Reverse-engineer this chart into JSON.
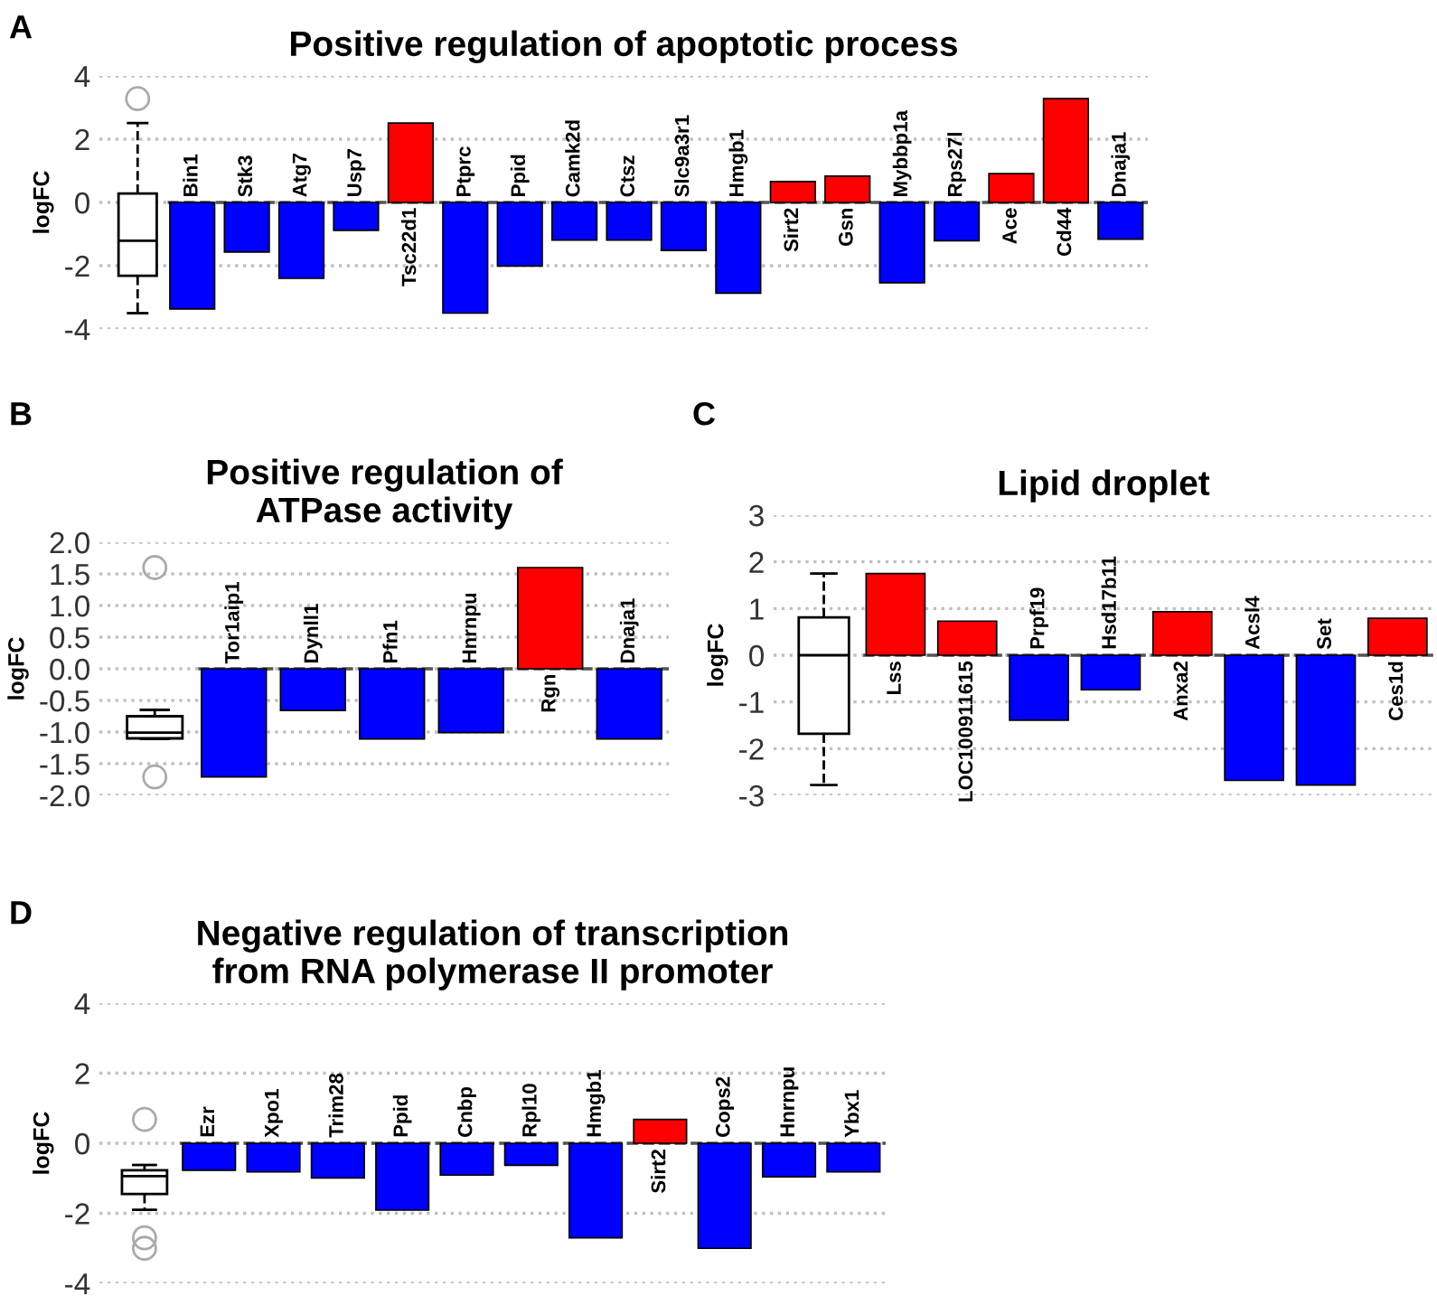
{
  "chart_data": [
    {
      "type": "bar",
      "title": "Positive regulation of apoptotic process",
      "ylabel": "logFC",
      "annotations": [
        "A"
      ],
      "ylim": [
        -4,
        4
      ],
      "yticks": [
        -4,
        -2,
        0,
        2,
        4
      ],
      "grid": "y",
      "categories": [
        null,
        "Bin1",
        "Stk3",
        "Atg7",
        "Usp7",
        "Tsc22d1",
        "Ptprc",
        "Ppid",
        "Camk2d",
        "Ctsz",
        "Slc9a3r1",
        "Hmgb1",
        "Sirt2",
        "Gsn",
        "Mybbp1a",
        "Rps27l",
        "Ace",
        "Cd44",
        "Dnaja1"
      ],
      "series": [
        {
          "type": "box",
          "boxes": [
            {
              "low": -3.5,
              "q1": -2.32,
              "median": -1.21,
              "q3": 0.28,
              "high": 2.51,
              "outliers": [
                3.28
              ]
            },
            null,
            null,
            null,
            null,
            null,
            null,
            null,
            null,
            null,
            null,
            null,
            null,
            null,
            null,
            null,
            null,
            null,
            null
          ]
        },
        {
          "type": "bar",
          "values": [
            null,
            -3.37,
            -1.57,
            -2.4,
            -0.88,
            2.51,
            -3.5,
            -2.01,
            -1.19,
            -1.19,
            -1.52,
            -2.87,
            0.66,
            0.83,
            -2.54,
            -1.21,
            0.91,
            3.28,
            -1.16
          ],
          "colors": [
            null,
            "#0000ff",
            "#0000ff",
            "#0000ff",
            "#0000ff",
            "#ff0000",
            "#0000ff",
            "#0000ff",
            "#0000ff",
            "#0000ff",
            "#0000ff",
            "#0000ff",
            "#ff0000",
            "#ff0000",
            "#0000ff",
            "#0000ff",
            "#ff0000",
            "#ff0000",
            "#0000ff"
          ]
        }
      ],
      "ref_lines": [
        {
          "axis": "y",
          "value": 0,
          "color": "#555555",
          "line_style": "dashed"
        }
      ]
    },
    {
      "type": "bar",
      "title": "Positive regulation of\nATPase activity",
      "ylabel": "logFC",
      "annotations": [
        "B"
      ],
      "ylim": [
        -2,
        2
      ],
      "grid": "y",
      "yticks": [
        {
          "value": -2,
          "label": "-2.0"
        },
        {
          "value": -1.5,
          "label": "-1.5"
        },
        {
          "value": -1,
          "label": "-1.0"
        },
        {
          "value": -0.5,
          "label": "-0.5"
        },
        {
          "value": 0,
          "label": "0.0"
        },
        {
          "value": 0.5,
          "label": "0.5"
        },
        {
          "value": 1,
          "label": "1.0"
        },
        {
          "value": 1.5,
          "label": "1.5"
        },
        {
          "value": 2,
          "label": "2.0"
        }
      ],
      "categories": [
        null,
        "Tor1aip1",
        "Dynll1",
        "Pfn1",
        "Hnrnpu",
        "Rgn",
        "Dnaja1"
      ],
      "series": [
        {
          "type": "box",
          "boxes": [
            {
              "low": -1.11,
              "q1": -1.1,
              "median": -1.01,
              "q3": -0.75,
              "high": -0.65,
              "outliers": [
                1.6,
                -1.71
              ]
            },
            null,
            null,
            null,
            null,
            null,
            null
          ]
        },
        {
          "type": "bar",
          "values": [
            null,
            -1.71,
            -0.66,
            -1.11,
            -1.01,
            1.6,
            -1.11
          ],
          "colors": [
            null,
            "#0000ff",
            "#0000ff",
            "#0000ff",
            "#0000ff",
            "#ff0000",
            "#0000ff"
          ]
        }
      ],
      "ref_lines": [
        {
          "axis": "y",
          "value": 0,
          "color": "#555555",
          "line_style": "dashed"
        }
      ]
    },
    {
      "type": "bar",
      "title": "Lipid droplet",
      "ylabel": "logFC",
      "annotations": [
        "C"
      ],
      "ylim": [
        -3,
        3
      ],
      "yticks": [
        -3,
        -2,
        -1,
        0,
        1,
        2,
        3
      ],
      "grid": "y",
      "categories": [
        null,
        "Lss",
        "LOC100911615",
        "Prpf19",
        "Hsd17b11",
        "Anxa2",
        "Acsl4",
        "Set",
        "Ces1d"
      ],
      "series": [
        {
          "type": "box",
          "boxes": [
            {
              "low": -2.78,
              "q1": -1.68,
              "median": 0,
              "q3": 0.81,
              "high": 1.75
            },
            null,
            null,
            null,
            null,
            null,
            null,
            null,
            null
          ]
        },
        {
          "type": "bar",
          "values": [
            null,
            1.75,
            0.73,
            -1.39,
            -0.74,
            0.93,
            -2.68,
            -2.78,
            0.79
          ],
          "colors": [
            null,
            "#ff0000",
            "#ff0000",
            "#0000ff",
            "#0000ff",
            "#ff0000",
            "#0000ff",
            "#0000ff",
            "#ff0000"
          ]
        }
      ],
      "ref_lines": [
        {
          "axis": "y",
          "value": 0,
          "color": "#555555",
          "line_style": "dashed"
        }
      ]
    },
    {
      "type": "bar",
      "title": "Negative regulation of transcription\nfrom RNA polymerase II promoter",
      "ylabel": "logFC",
      "annotations": [
        "D"
      ],
      "ylim": [
        -4,
        4
      ],
      "yticks": [
        -4,
        -2,
        0,
        2,
        4
      ],
      "grid": "y",
      "categories": [
        null,
        "Ezr",
        "Xpo1",
        "Trim28",
        "Ppid",
        "Cnbp",
        "Rpl10",
        "Hmgb1",
        "Sirt2",
        "Cops2",
        "Hnrnpu",
        "Ybx1"
      ],
      "series": [
        {
          "type": "box",
          "boxes": [
            {
              "low": -1.9,
              "q1": -1.45,
              "median": -0.94,
              "q3": -0.77,
              "high": -0.62,
              "outliers": [
                0.68,
                -2.7,
                -3.0
              ]
            },
            null,
            null,
            null,
            null,
            null,
            null,
            null,
            null,
            null,
            null,
            null
          ]
        },
        {
          "type": "bar",
          "values": [
            null,
            -0.77,
            -0.82,
            -0.99,
            -1.91,
            -0.91,
            -0.63,
            -2.7,
            0.68,
            -3.0,
            -0.96,
            -0.82
          ],
          "colors": [
            null,
            "#0000ff",
            "#0000ff",
            "#0000ff",
            "#0000ff",
            "#0000ff",
            "#0000ff",
            "#0000ff",
            "#ff0000",
            "#0000ff",
            "#0000ff",
            "#0000ff"
          ]
        }
      ],
      "ref_lines": [
        {
          "axis": "y",
          "value": 0,
          "color": "#555555",
          "line_style": "dashed"
        }
      ]
    }
  ]
}
